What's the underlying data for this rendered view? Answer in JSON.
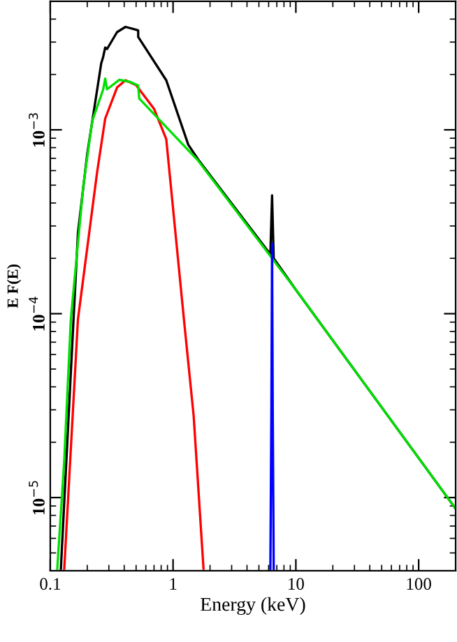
{
  "chart_data": {
    "type": "line",
    "xlabel": "Energy (keV)",
    "ylabel": "E F(E)",
    "log": "xy",
    "xlim": [
      0.1,
      200
    ],
    "ylim": [
      4e-06,
      0.005
    ],
    "xticks": [
      0.1,
      1,
      10,
      100
    ],
    "yticks": [
      {
        "value": 1e-05,
        "label": "10$^{−5}$"
      },
      {
        "value": 0.0001,
        "label": "10$^{−4}$"
      },
      {
        "value": 0.001,
        "label": "10$^{−3}$"
      }
    ],
    "grid": false,
    "legend": false,
    "marker": "none",
    "line_style": "solid",
    "series": [
      {
        "color": "#000000",
        "x": [
          0.122,
          0.168,
          0.2,
          0.26,
          0.27,
          0.28,
          0.29,
          0.35,
          0.41,
          0.5,
          0.52,
          0.52,
          0.88,
          1.33,
          1.6,
          6.2,
          6.4,
          6.6,
          10,
          200
        ],
        "values": [
          4.1e-06,
          0.000275,
          0.00074,
          0.0023,
          0.0025,
          0.0028,
          0.00275,
          0.0034,
          0.00363,
          0.0035,
          0.00347,
          0.0032,
          0.00186,
          0.00083,
          0.00069,
          0.00021,
          0.00044,
          0.0002,
          0.000135,
          8.7e-06
        ]
      },
      {
        "color": "#ff0000",
        "x": [
          0.13,
          0.168,
          0.24,
          0.28,
          0.35,
          0.41,
          0.5,
          0.7,
          0.88,
          1.23,
          1.47,
          1.77
        ],
        "values": [
          4.1e-06,
          9.3e-05,
          0.00058,
          0.00115,
          0.0017,
          0.00186,
          0.00175,
          0.0013,
          0.00089,
          9.1e-05,
          2.8e-05,
          4.1e-06
        ]
      },
      {
        "color": "#00e000",
        "x": [
          0.114,
          0.13,
          0.147,
          0.186,
          0.22,
          0.27,
          0.28,
          0.29,
          0.365,
          0.45,
          0.52,
          0.53,
          1.6,
          10,
          200
        ],
        "values": [
          4.1e-06,
          1.6e-05,
          9.3e-05,
          0.0005,
          0.00112,
          0.00166,
          0.0019,
          0.00166,
          0.00187,
          0.00182,
          0.00174,
          0.00148,
          0.00068,
          0.000135,
          8.7e-06
        ]
      },
      {
        "color": "#0000ff",
        "x": [
          6.2,
          6.32,
          6.4,
          6.48,
          6.6
        ],
        "values": [
          4.1e-06,
          3e-05,
          0.00024,
          3e-05,
          4.1e-06
        ]
      }
    ]
  }
}
